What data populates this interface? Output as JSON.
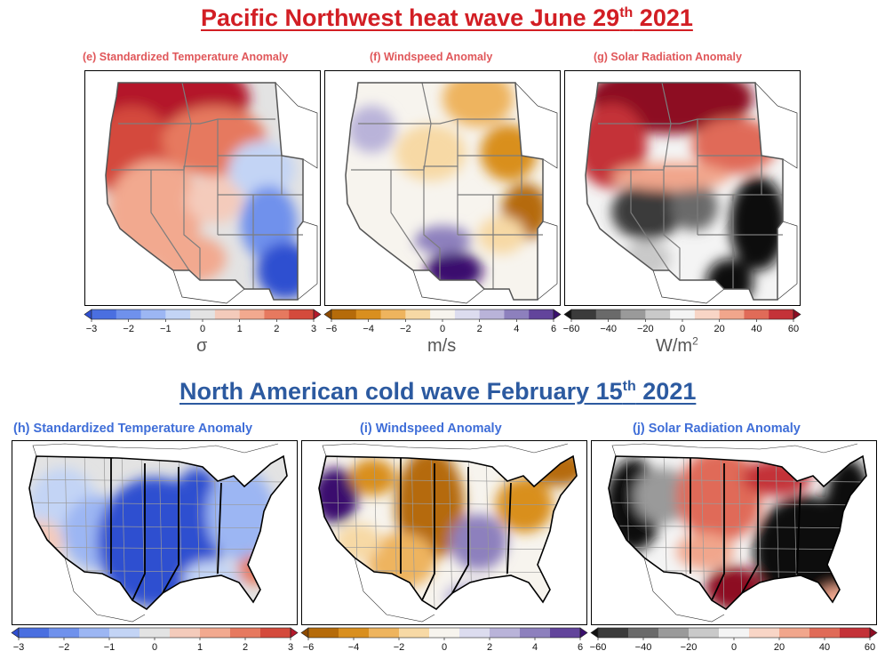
{
  "titles": {
    "top_main": "Pacific Northwest heat wave June 29",
    "top_sup": "th",
    "top_year": " 2021",
    "bottom_main": "North American cold wave February 15",
    "bottom_sup": "th",
    "bottom_year": " 2021"
  },
  "panels": [
    {
      "id": "e",
      "title": "(e) Standardized Temperature Anomaly",
      "variable": "temperature",
      "scheme": "coolwarm",
      "ticks": [
        "−3",
        "−2",
        "−1",
        "0",
        "1",
        "2",
        "3"
      ],
      "unit": "σ",
      "unit_sup": ""
    },
    {
      "id": "f",
      "title": "(f) Windspeed Anomaly",
      "variable": "windspeed",
      "scheme": "puor",
      "ticks": [
        "−6",
        "−4",
        "−2",
        "0",
        "2",
        "4",
        "6"
      ],
      "unit": "m/s",
      "unit_sup": ""
    },
    {
      "id": "g",
      "title": "(g) Solar Radiation Anomaly",
      "variable": "solar",
      "scheme": "greyred",
      "ticks": [
        "−60",
        "−40",
        "−20",
        "0",
        "20",
        "40",
        "60"
      ],
      "unit": "W/m",
      "unit_sup": "2"
    },
    {
      "id": "h",
      "title": "(h) Standardized Temperature Anomaly",
      "variable": "temperature",
      "scheme": "coolwarm",
      "ticks": [
        "−3",
        "−2",
        "−1",
        "0",
        "1",
        "2",
        "3"
      ]
    },
    {
      "id": "i",
      "title": "(i) Windspeed Anomaly",
      "variable": "windspeed",
      "scheme": "puor",
      "ticks": [
        "−6",
        "−4",
        "−2",
        "0",
        "2",
        "4",
        "6"
      ]
    },
    {
      "id": "j",
      "title": "(j) Solar Radiation Anomaly",
      "variable": "solar",
      "scheme": "greyred",
      "ticks": [
        "−60",
        "−40",
        "−20",
        "0",
        "20",
        "40",
        "60"
      ]
    }
  ],
  "colors": {
    "title_top": "#d21e24",
    "title_bottom": "#2c5aa0",
    "coolwarm": [
      "#2f4fd0",
      "#4a6fe0",
      "#6f91ec",
      "#9cb6f3",
      "#c3d4f5",
      "#e3e3e3",
      "#f4cbbb",
      "#f2a98f",
      "#e6795f",
      "#d44a3c",
      "#b4182b"
    ],
    "puor": [
      "#8c4a00",
      "#b56b0a",
      "#d98f1f",
      "#eeb45e",
      "#f7d9a5",
      "#f7f4ee",
      "#dcdcef",
      "#b9b3d9",
      "#8d80bd",
      "#62449b",
      "#3a0f6e"
    ],
    "greyred": [
      "#111111",
      "#3b3b3b",
      "#6a6a6a",
      "#9a9a9a",
      "#c9c9c9",
      "#f4f4f4",
      "#f8d5c6",
      "#f1a68c",
      "#e06b58",
      "#c43238",
      "#8d0c23"
    ]
  }
}
